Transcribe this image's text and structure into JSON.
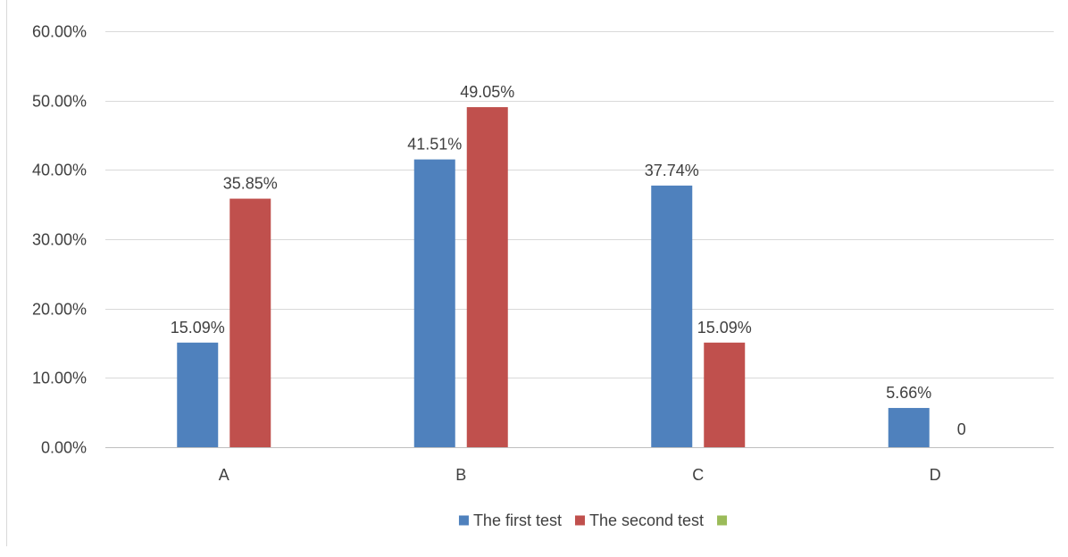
{
  "chart_data": {
    "type": "bar",
    "categories": [
      "A",
      "B",
      "C",
      "D"
    ],
    "series": [
      {
        "name": "The first test",
        "values": [
          15.09,
          41.51,
          37.74,
          5.66
        ],
        "labels": [
          "15.09%",
          "41.51%",
          "37.74%",
          "5.66%"
        ],
        "color": "#4f81bd"
      },
      {
        "name": "The second test",
        "values": [
          35.85,
          49.05,
          15.09,
          0
        ],
        "labels": [
          "35.85%",
          "49.05%",
          "15.09%",
          "0"
        ],
        "color": "#c0504d"
      },
      {
        "name": "",
        "values": [
          null,
          null,
          null,
          null
        ],
        "labels": [],
        "color": "#9bbb59"
      }
    ],
    "ylim": [
      0,
      60
    ],
    "yticks": [
      "0.00%",
      "10.00%",
      "20.00%",
      "30.00%",
      "40.00%",
      "50.00%",
      "60.00%"
    ],
    "grid": true,
    "legend": "bottom",
    "xlabel": "",
    "ylabel": ""
  }
}
